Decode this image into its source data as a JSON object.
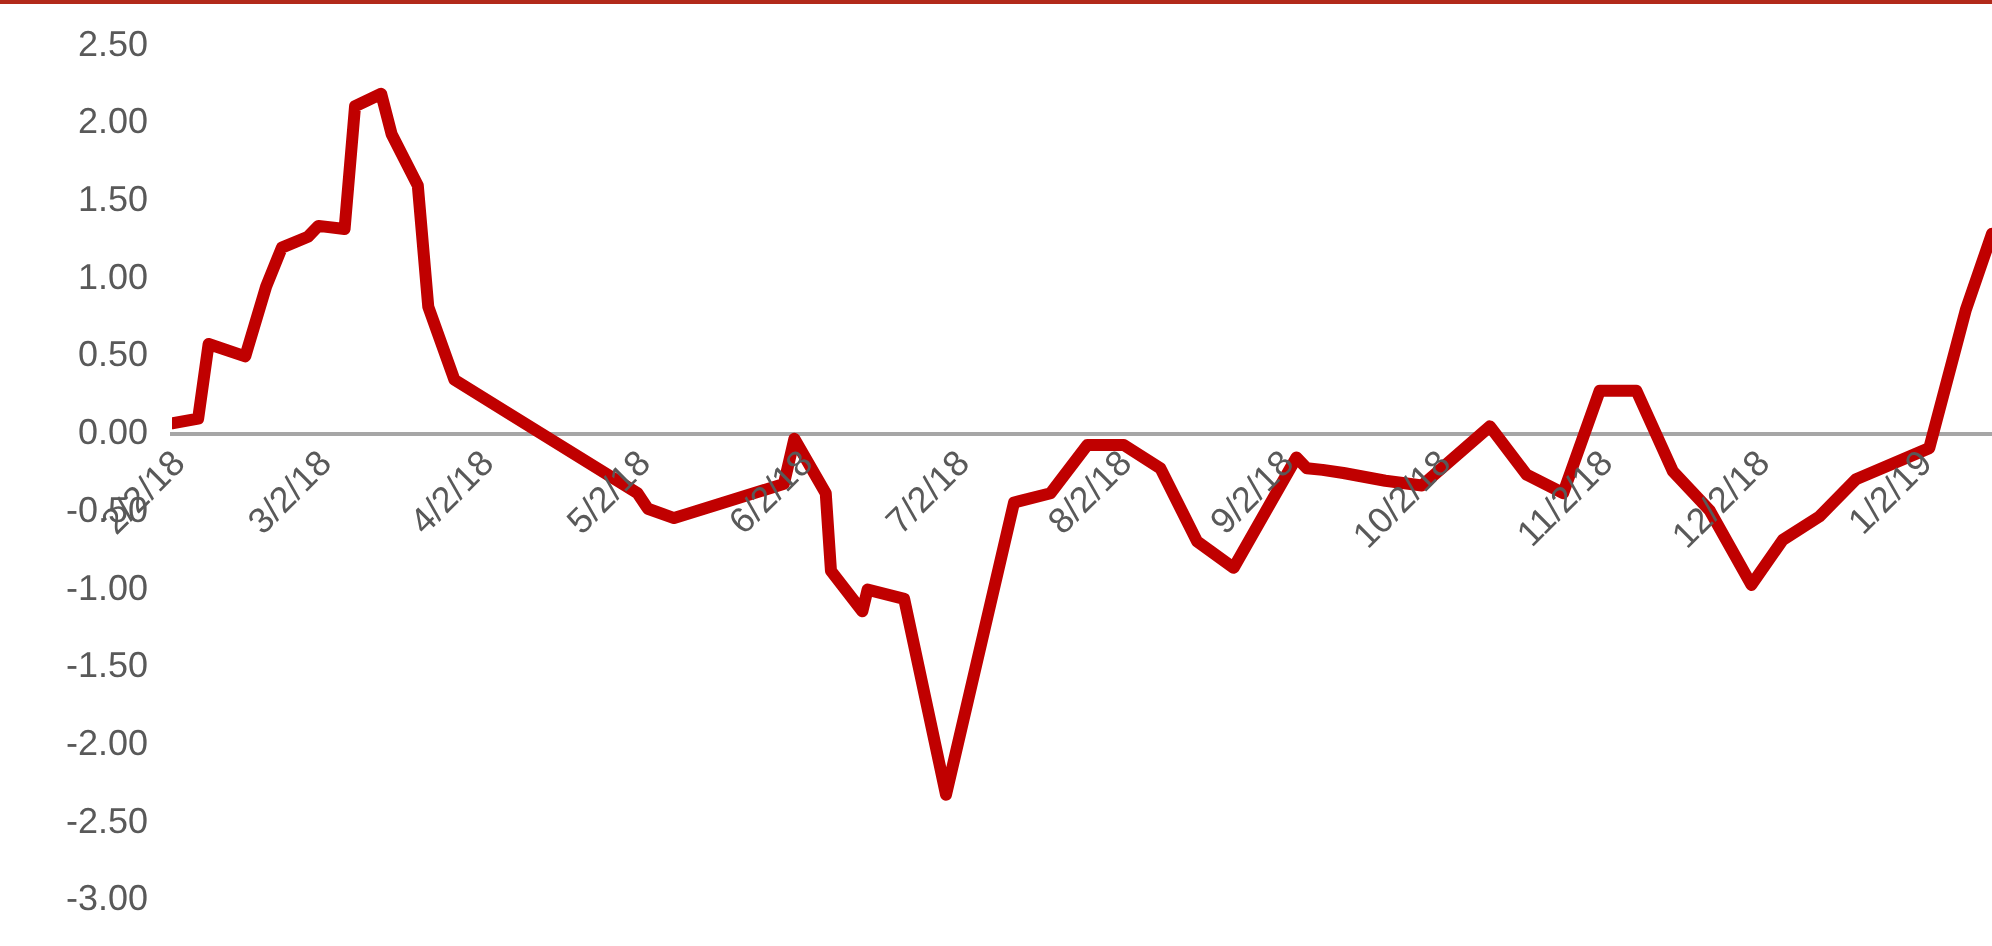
{
  "chart_data": {
    "type": "line",
    "x": [
      "2018-02-02",
      "2018-02-07",
      "2018-02-09",
      "2018-02-16",
      "2018-02-20",
      "2018-02-23",
      "2018-02-28",
      "2018-03-02",
      "2018-03-07",
      "2018-03-09",
      "2018-03-14",
      "2018-03-16",
      "2018-03-21",
      "2018-03-23",
      "2018-03-28",
      "2018-05-02",
      "2018-05-04",
      "2018-05-09",
      "2018-05-30",
      "2018-06-01",
      "2018-06-07",
      "2018-06-08",
      "2018-06-14",
      "2018-06-15",
      "2018-06-22",
      "2018-06-30",
      "2018-07-13",
      "2018-07-20",
      "2018-07-27",
      "2018-08-03",
      "2018-08-10",
      "2018-08-17",
      "2018-08-24",
      "2018-09-05",
      "2018-09-07",
      "2018-09-10",
      "2018-09-14",
      "2018-09-22",
      "2018-09-29",
      "2018-10-12",
      "2018-10-19",
      "2018-10-26",
      "2018-11-02",
      "2018-11-09",
      "2018-11-16",
      "2018-11-23",
      "2018-12-01",
      "2018-12-07",
      "2018-12-14",
      "2018-12-21",
      "2019-01-04",
      "2019-01-11",
      "2019-01-16"
    ],
    "series": [
      {
        "color": "#c00000",
        "values": [
          0.07,
          0.1,
          0.58,
          0.5,
          0.95,
          1.2,
          1.27,
          1.34,
          1.32,
          2.11,
          2.19,
          1.93,
          1.6,
          0.82,
          0.35,
          -0.38,
          -0.48,
          -0.54,
          -0.32,
          -0.03,
          -0.38,
          -0.88,
          -1.14,
          -1.0,
          -1.06,
          -2.32,
          -0.44,
          -0.38,
          -0.07,
          -0.07,
          -0.22,
          -0.69,
          -0.86,
          -0.15,
          -0.22,
          -0.23,
          -0.25,
          -0.3,
          -0.33,
          0.05,
          -0.26,
          -0.38,
          0.28,
          0.28,
          -0.24,
          -0.49,
          -0.97,
          -0.68,
          -0.53,
          -0.29,
          -0.09,
          0.8,
          1.29
        ]
      }
    ],
    "xlim": [
      "2018-02-02",
      "2019-01-16"
    ],
    "xticks": [
      {
        "value": "2018-02-02",
        "label": "2/2/18"
      },
      {
        "value": "2018-03-02",
        "label": "3/2/18"
      },
      {
        "value": "2018-04-02",
        "label": "4/2/18"
      },
      {
        "value": "2018-05-02",
        "label": "5/2/18"
      },
      {
        "value": "2018-06-02",
        "label": "6/2/18"
      },
      {
        "value": "2018-07-02",
        "label": "7/2/18"
      },
      {
        "value": "2018-08-02",
        "label": "8/2/18"
      },
      {
        "value": "2018-09-02",
        "label": "9/2/18"
      },
      {
        "value": "2018-10-02",
        "label": "10/2/18"
      },
      {
        "value": "2018-11-02",
        "label": "11/2/18"
      },
      {
        "value": "2018-12-02",
        "label": "12/2/18"
      },
      {
        "value": "2019-01-02",
        "label": "1/2/19"
      }
    ],
    "ylim": [
      -3,
      2.5
    ],
    "yticks": [
      {
        "value": -3,
        "label": "-3.00"
      },
      {
        "value": -2.5,
        "label": "-2.50"
      },
      {
        "value": -2,
        "label": "-2.00"
      },
      {
        "value": -1.5,
        "label": "-1.50"
      },
      {
        "value": -1,
        "label": "-1.00"
      },
      {
        "value": -0.5,
        "label": "-0.50"
      },
      {
        "value": 0,
        "label": "0.00"
      },
      {
        "value": 0.5,
        "label": "0.50"
      },
      {
        "value": 1,
        "label": "1.00"
      },
      {
        "value": 1.5,
        "label": "1.50"
      },
      {
        "value": 2,
        "label": "2.00"
      },
      {
        "value": 2.5,
        "label": "2.50"
      }
    ],
    "grid": false,
    "legend": false,
    "marker": "none",
    "line_style": "solid"
  }
}
